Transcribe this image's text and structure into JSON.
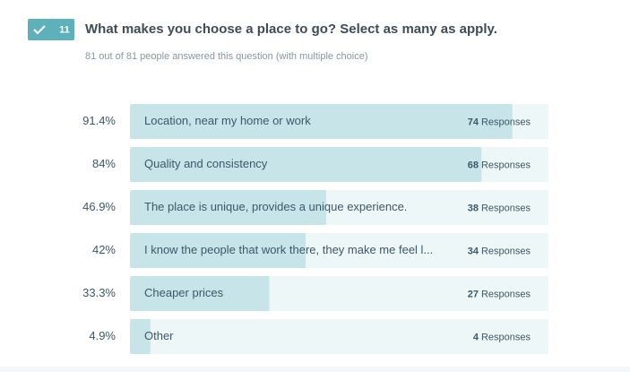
{
  "chart_data": {
    "type": "bar",
    "orientation": "horizontal",
    "question_number": "11",
    "title": "What makes you choose a place to go? Select as many as apply.",
    "subtitle": "81 out of 81 people answered this question (with multiple choice)",
    "categories": [
      "Location, near my home or work",
      "Quality and consistency",
      "The place is unique, provides a unique experience.",
      "I know the people that work there, they make me feel l...",
      "Cheaper prices",
      "Other"
    ],
    "values": [
      91.4,
      84,
      46.9,
      42,
      33.3,
      4.9
    ],
    "value_labels": [
      "91.4%",
      "84%",
      "46.9%",
      "42%",
      "33.3%",
      "4.9%"
    ],
    "responses": [
      74,
      68,
      38,
      34,
      27,
      4
    ],
    "responses_unit": "Responses",
    "xlim": [
      0,
      100
    ],
    "color": "#c7e4e9",
    "track_color": "#eef7f8"
  }
}
